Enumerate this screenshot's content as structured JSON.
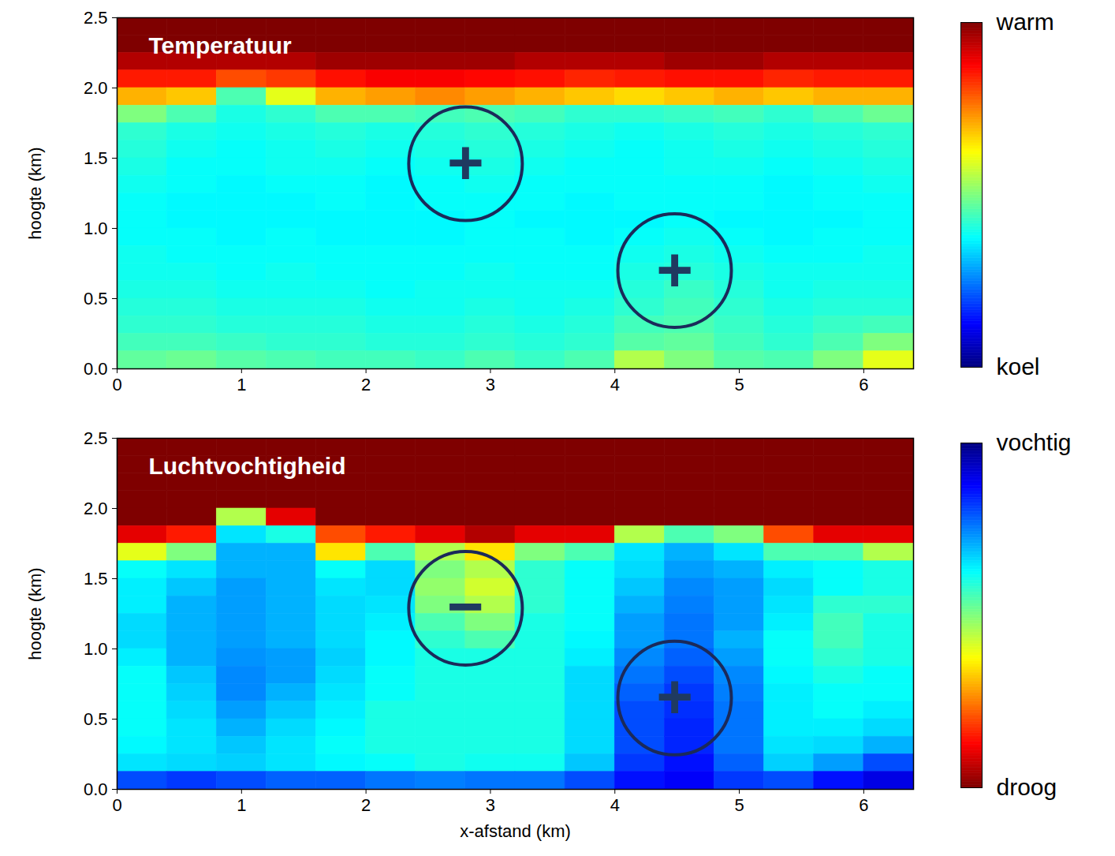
{
  "chart_data": [
    {
      "type": "heatmap",
      "title": "Temperatuur",
      "ylabel": "hoogte (km)",
      "xlim": [
        0,
        6.4
      ],
      "ylim": [
        0,
        2.5
      ],
      "xticks": [
        0,
        1,
        2,
        3,
        4,
        5,
        6
      ],
      "yticks": [
        {
          "value": 0,
          "label": "0.0"
        },
        {
          "value": 0.5,
          "label": "0.5"
        },
        {
          "value": 1,
          "label": "1.0"
        },
        {
          "value": 1.5,
          "label": "1.5"
        },
        {
          "value": 2,
          "label": "2.0"
        },
        {
          "value": 2.5,
          "label": "2.5"
        }
      ],
      "x_bins": [
        0,
        0.4,
        0.8,
        1.2,
        1.6,
        2.0,
        2.4,
        2.8,
        3.2,
        3.6,
        4.0,
        4.4,
        4.8,
        5.2,
        5.6,
        6.0,
        6.4
      ],
      "y_bins": [
        0,
        0.125,
        0.25,
        0.375,
        0.5,
        0.625,
        0.75,
        0.875,
        1.0,
        1.125,
        1.25,
        1.375,
        1.5,
        1.625,
        1.75,
        1.875,
        2.0,
        2.125,
        2.25,
        2.375,
        2.5
      ],
      "cells": [
        [
          1,
          1,
          1,
          1,
          1,
          1,
          1,
          1,
          1,
          1,
          1,
          1,
          1,
          1,
          1,
          1
        ],
        [
          1,
          1,
          1,
          1,
          1,
          1,
          1,
          1,
          1,
          1,
          1,
          1,
          1,
          1,
          1,
          1
        ],
        [
          0.95,
          0.95,
          0.95,
          0.95,
          0.97,
          0.97,
          0.97,
          0.97,
          0.95,
          0.95,
          0.95,
          0.97,
          0.97,
          0.95,
          0.95,
          0.95
        ],
        [
          0.85,
          0.85,
          0.8,
          0.82,
          0.86,
          0.88,
          0.88,
          0.87,
          0.86,
          0.84,
          0.85,
          0.86,
          0.86,
          0.84,
          0.85,
          0.85
        ],
        [
          0.7,
          0.68,
          0.45,
          0.6,
          0.7,
          0.72,
          0.74,
          0.72,
          0.7,
          0.68,
          0.66,
          0.68,
          0.7,
          0.68,
          0.7,
          0.7
        ],
        [
          0.5,
          0.45,
          0.4,
          0.42,
          0.45,
          0.45,
          0.44,
          0.45,
          0.44,
          0.42,
          0.42,
          0.43,
          0.44,
          0.42,
          0.45,
          0.48
        ],
        [
          0.42,
          0.4,
          0.39,
          0.4,
          0.41,
          0.4,
          0.41,
          0.42,
          0.41,
          0.4,
          0.39,
          0.4,
          0.41,
          0.4,
          0.41,
          0.42
        ],
        [
          0.41,
          0.39,
          0.38,
          0.39,
          0.4,
          0.39,
          0.4,
          0.41,
          0.4,
          0.39,
          0.38,
          0.39,
          0.4,
          0.39,
          0.4,
          0.41
        ],
        [
          0.4,
          0.38,
          0.38,
          0.39,
          0.39,
          0.38,
          0.39,
          0.4,
          0.39,
          0.38,
          0.38,
          0.39,
          0.39,
          0.38,
          0.39,
          0.4
        ],
        [
          0.39,
          0.38,
          0.37,
          0.38,
          0.38,
          0.37,
          0.38,
          0.39,
          0.38,
          0.38,
          0.38,
          0.38,
          0.38,
          0.37,
          0.38,
          0.39
        ],
        [
          0.38,
          0.37,
          0.37,
          0.37,
          0.38,
          0.37,
          0.38,
          0.38,
          0.38,
          0.37,
          0.38,
          0.38,
          0.38,
          0.37,
          0.38,
          0.38
        ],
        [
          0.38,
          0.37,
          0.37,
          0.37,
          0.37,
          0.37,
          0.37,
          0.38,
          0.37,
          0.37,
          0.37,
          0.38,
          0.37,
          0.37,
          0.37,
          0.38
        ],
        [
          0.38,
          0.38,
          0.37,
          0.38,
          0.37,
          0.37,
          0.37,
          0.38,
          0.38,
          0.37,
          0.38,
          0.39,
          0.38,
          0.37,
          0.38,
          0.38
        ],
        [
          0.39,
          0.38,
          0.38,
          0.38,
          0.38,
          0.38,
          0.38,
          0.38,
          0.38,
          0.38,
          0.39,
          0.4,
          0.39,
          0.38,
          0.38,
          0.39
        ],
        [
          0.39,
          0.39,
          0.38,
          0.39,
          0.38,
          0.38,
          0.38,
          0.39,
          0.38,
          0.38,
          0.4,
          0.41,
          0.4,
          0.39,
          0.39,
          0.39
        ],
        [
          0.4,
          0.4,
          0.39,
          0.39,
          0.39,
          0.38,
          0.39,
          0.39,
          0.39,
          0.39,
          0.41,
          0.43,
          0.41,
          0.39,
          0.4,
          0.4
        ],
        [
          0.41,
          0.41,
          0.4,
          0.4,
          0.4,
          0.39,
          0.39,
          0.4,
          0.39,
          0.4,
          0.42,
          0.44,
          0.42,
          0.4,
          0.41,
          0.41
        ],
        [
          0.42,
          0.42,
          0.41,
          0.41,
          0.41,
          0.4,
          0.4,
          0.41,
          0.4,
          0.41,
          0.44,
          0.45,
          0.43,
          0.41,
          0.43,
          0.44
        ],
        [
          0.44,
          0.44,
          0.43,
          0.42,
          0.42,
          0.41,
          0.41,
          0.42,
          0.41,
          0.42,
          0.46,
          0.47,
          0.44,
          0.42,
          0.45,
          0.5
        ],
        [
          0.47,
          0.48,
          0.46,
          0.45,
          0.44,
          0.44,
          0.43,
          0.45,
          0.43,
          0.45,
          0.55,
          0.5,
          0.46,
          0.45,
          0.5,
          0.6
        ]
      ],
      "colorbar": {
        "lim": [
          0,
          1
        ],
        "ticks": [
          {
            "value": 1,
            "label": "warm"
          },
          {
            "value": 0,
            "label": "koel"
          }
        ]
      },
      "annotations": [
        {
          "x": 2.8,
          "y": 1.46,
          "text": "+"
        },
        {
          "x": 4.48,
          "y": 0.7,
          "text": "+"
        }
      ]
    },
    {
      "type": "heatmap",
      "title": "Luchtvochtigheid",
      "xlabel": "x-afstand (km)",
      "ylabel": "hoogte (km)",
      "xlim": [
        0,
        6.4
      ],
      "ylim": [
        0,
        2.5
      ],
      "xticks": [
        0,
        1,
        2,
        3,
        4,
        5,
        6
      ],
      "yticks": [
        {
          "value": 0,
          "label": "0.0"
        },
        {
          "value": 0.5,
          "label": "0.5"
        },
        {
          "value": 1,
          "label": "1.0"
        },
        {
          "value": 1.5,
          "label": "1.5"
        },
        {
          "value": 2,
          "label": "2.0"
        },
        {
          "value": 2.5,
          "label": "2.5"
        }
      ],
      "x_bins": [
        0,
        0.4,
        0.8,
        1.2,
        1.6,
        2.0,
        2.4,
        2.8,
        3.2,
        3.6,
        4.0,
        4.4,
        4.8,
        5.2,
        5.6,
        6.0,
        6.4
      ],
      "y_bins": [
        0,
        0.125,
        0.25,
        0.375,
        0.5,
        0.625,
        0.75,
        0.875,
        1.0,
        1.125,
        1.25,
        1.375,
        1.5,
        1.625,
        1.75,
        1.875,
        2.0,
        2.125,
        2.25,
        2.375,
        2.5
      ],
      "cells": [
        [
          1,
          1,
          1,
          1,
          1,
          1,
          1,
          1,
          1,
          1,
          1,
          1,
          1,
          1,
          1,
          1
        ],
        [
          1,
          1,
          1,
          1,
          1,
          1,
          1,
          1,
          1,
          1,
          1,
          1,
          1,
          1,
          1,
          1
        ],
        [
          1,
          1,
          1,
          1,
          1,
          1,
          1,
          1,
          1,
          1,
          1,
          1,
          1,
          1,
          1,
          1
        ],
        [
          1,
          1,
          1,
          1,
          1,
          1,
          1,
          1,
          1,
          1,
          1,
          1,
          1,
          1,
          1,
          1
        ],
        [
          1,
          1,
          0.55,
          0.9,
          1,
          1,
          1,
          1,
          1,
          1,
          1,
          1,
          1,
          1,
          1,
          1
        ],
        [
          0.9,
          0.85,
          0.35,
          0.4,
          0.8,
          0.85,
          0.9,
          0.95,
          0.9,
          0.9,
          0.55,
          0.45,
          0.5,
          0.8,
          0.9,
          0.9
        ],
        [
          0.6,
          0.5,
          0.3,
          0.3,
          0.65,
          0.45,
          0.55,
          0.65,
          0.5,
          0.45,
          0.35,
          0.3,
          0.35,
          0.45,
          0.45,
          0.55
        ],
        [
          0.38,
          0.35,
          0.3,
          0.3,
          0.38,
          0.34,
          0.5,
          0.55,
          0.42,
          0.38,
          0.34,
          0.28,
          0.3,
          0.36,
          0.38,
          0.4
        ],
        [
          0.36,
          0.32,
          0.28,
          0.3,
          0.35,
          0.34,
          0.52,
          0.58,
          0.42,
          0.38,
          0.32,
          0.26,
          0.28,
          0.34,
          0.38,
          0.4
        ],
        [
          0.36,
          0.3,
          0.28,
          0.3,
          0.34,
          0.35,
          0.5,
          0.55,
          0.42,
          0.38,
          0.3,
          0.25,
          0.28,
          0.35,
          0.42,
          0.42
        ],
        [
          0.34,
          0.3,
          0.28,
          0.3,
          0.34,
          0.36,
          0.45,
          0.5,
          0.4,
          0.38,
          0.28,
          0.24,
          0.28,
          0.36,
          0.44,
          0.4
        ],
        [
          0.34,
          0.3,
          0.28,
          0.3,
          0.34,
          0.37,
          0.42,
          0.45,
          0.4,
          0.37,
          0.28,
          0.24,
          0.3,
          0.38,
          0.44,
          0.4
        ],
        [
          0.36,
          0.3,
          0.27,
          0.28,
          0.33,
          0.37,
          0.4,
          0.4,
          0.4,
          0.36,
          0.26,
          0.22,
          0.28,
          0.38,
          0.42,
          0.4
        ],
        [
          0.38,
          0.32,
          0.26,
          0.28,
          0.34,
          0.38,
          0.4,
          0.4,
          0.4,
          0.34,
          0.24,
          0.2,
          0.26,
          0.37,
          0.4,
          0.38
        ],
        [
          0.38,
          0.33,
          0.26,
          0.3,
          0.35,
          0.38,
          0.4,
          0.4,
          0.4,
          0.34,
          0.22,
          0.18,
          0.25,
          0.36,
          0.38,
          0.38
        ],
        [
          0.38,
          0.34,
          0.28,
          0.32,
          0.36,
          0.4,
          0.4,
          0.4,
          0.4,
          0.34,
          0.2,
          0.17,
          0.24,
          0.36,
          0.38,
          0.36
        ],
        [
          0.38,
          0.35,
          0.3,
          0.34,
          0.37,
          0.4,
          0.4,
          0.4,
          0.4,
          0.34,
          0.2,
          0.16,
          0.24,
          0.36,
          0.36,
          0.34
        ],
        [
          0.37,
          0.35,
          0.32,
          0.35,
          0.38,
          0.4,
          0.4,
          0.4,
          0.4,
          0.34,
          0.2,
          0.16,
          0.24,
          0.35,
          0.34,
          0.3
        ],
        [
          0.35,
          0.34,
          0.33,
          0.35,
          0.37,
          0.38,
          0.4,
          0.39,
          0.39,
          0.32,
          0.18,
          0.14,
          0.22,
          0.33,
          0.28,
          0.2
        ],
        [
          0.2,
          0.18,
          0.2,
          0.22,
          0.22,
          0.24,
          0.25,
          0.24,
          0.24,
          0.2,
          0.14,
          0.12,
          0.18,
          0.2,
          0.14,
          0.1
        ]
      ],
      "colorbar": {
        "lim": [
          1,
          0
        ],
        "ticks": [
          {
            "value": 0,
            "label": "vochtig"
          },
          {
            "value": 1,
            "label": "droog"
          }
        ]
      },
      "annotations": [
        {
          "x": 2.8,
          "y": 1.29,
          "text": "−"
        },
        {
          "x": 4.48,
          "y": 0.65,
          "text": "+"
        }
      ]
    }
  ]
}
